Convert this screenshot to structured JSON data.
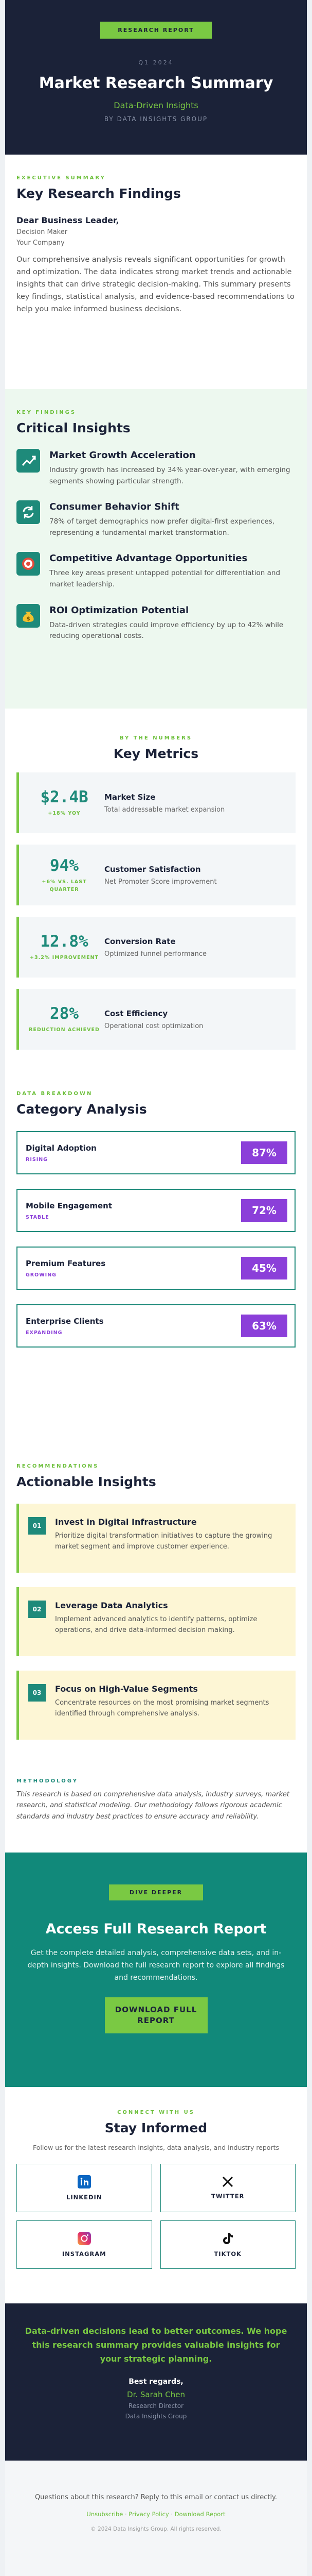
{
  "header": {
    "badge": "RESEARCH REPORT",
    "date": "Q1 2024",
    "title": "Market Research Summary",
    "subtitle": "Data-Driven Insights",
    "byline": "BY DATA INSIGHTS GROUP"
  },
  "summary": {
    "eyebrow": "EXECUTIVE SUMMARY",
    "heading": "Key Research Findings",
    "greeting": "Dear Business Leader,",
    "recipient": [
      "Decision Maker",
      "Your Company"
    ],
    "paragraph": "Our comprehensive analysis reveals significant opportunities for growth and optimization. The data indicates strong market trends and actionable insights that can drive strategic decision-making. This summary presents key findings, statistical analysis, and evidence-based recommendations to help you make informed business decisions."
  },
  "insights": {
    "eyebrow": "KEY FINDINGS",
    "heading": "Critical Insights",
    "items": [
      {
        "title": "Market Growth Acceleration",
        "text": "Industry growth has increased by 34% year-over-year, with emerging segments showing particular strength."
      },
      {
        "title": "Consumer Behavior Shift",
        "text": "78% of target demographics now prefer digital-first experiences, representing a fundamental market transformation."
      },
      {
        "title": "Competitive Advantage Opportunities",
        "text": "Three key areas present untapped potential for differentiation and market leadership."
      },
      {
        "title": "ROI Optimization Potential",
        "text": "Data-driven strategies could improve efficiency by up to 42% while reducing operational costs."
      }
    ]
  },
  "metrics": {
    "eyebrow": "BY THE NUMBERS",
    "heading": "Key Metrics",
    "items": [
      {
        "value": "$2.4B",
        "change": "+18% YOY",
        "label": "Market Size",
        "desc": "Total addressable market expansion"
      },
      {
        "value": "94%",
        "change": "+6% VS. LAST QUARTER",
        "label": "Customer Satisfaction",
        "desc": "Net Promoter Score improvement"
      },
      {
        "value": "12.8%",
        "change": "+3.2% IMPROVEMENT",
        "label": "Conversion Rate",
        "desc": "Optimized funnel performance"
      },
      {
        "value": "28%",
        "change": "REDUCTION ACHIEVED",
        "label": "Cost Efficiency",
        "desc": "Operational cost optimization"
      }
    ]
  },
  "categories": {
    "eyebrow": "DATA BREAKDOWN",
    "heading": "Category Analysis",
    "items": [
      {
        "name": "Digital Adoption",
        "trend": "RISING",
        "value": "87%"
      },
      {
        "name": "Mobile Engagement",
        "trend": "STABLE",
        "value": "72%"
      },
      {
        "name": "Premium Features",
        "trend": "GROWING",
        "value": "45%"
      },
      {
        "name": "Enterprise Clients",
        "trend": "EXPANDING",
        "value": "63%"
      }
    ]
  },
  "actions": {
    "eyebrow": "RECOMMENDATIONS",
    "heading": "Actionable Insights",
    "items": [
      {
        "number": "01",
        "title": "Invest in Digital Infrastructure",
        "text": "Prioritize digital transformation initiatives to capture the growing market segment and improve customer experience."
      },
      {
        "number": "02",
        "title": "Leverage Data Analytics",
        "text": "Implement advanced analytics to identify patterns, optimize operations, and drive data-informed decision making."
      },
      {
        "number": "03",
        "title": "Focus on High-Value Segments",
        "text": "Concentrate resources on the most promising market segments identified through comprehensive analysis."
      }
    ]
  },
  "methodology": {
    "label": "METHODOLOGY",
    "text": "This research is based on comprehensive data analysis, industry surveys, market research, and statistical modeling. Our methodology follows rigorous academic standards and industry best practices to ensure accuracy and reliability."
  },
  "cta": {
    "eyebrow": "DIVE DEEPER",
    "heading": "Access Full Research Report",
    "text": "Get the complete detailed analysis, comprehensive data sets, and in-depth insights. Download the full research report to explore all findings and recommendations.",
    "button": "DOWNLOAD FULL REPORT"
  },
  "social": {
    "eyebrow": "CONNECT WITH US",
    "heading": "Stay Informed",
    "text": "Follow us for the latest research insights, data analysis, and industry reports",
    "links": [
      "LINKEDIN",
      "TWITTER",
      "INSTAGRAM",
      "TIKTOK"
    ]
  },
  "closing": {
    "quote": "Data-driven decisions lead to better outcomes. We hope this research summary provides valuable insights for your strategic planning.",
    "signoff": "Best regards,",
    "name": "Dr. Sarah Chen",
    "role": "Research Director",
    "org": "Data Insights Group"
  },
  "footer": {
    "text": "Questions about this research? Reply to this email or contact us directly.",
    "links": [
      "Unsubscribe",
      "Privacy Policy",
      "Download Report"
    ],
    "separator": "·",
    "copyright": "© 2024 Data Insights Group. All rights reserved."
  }
}
